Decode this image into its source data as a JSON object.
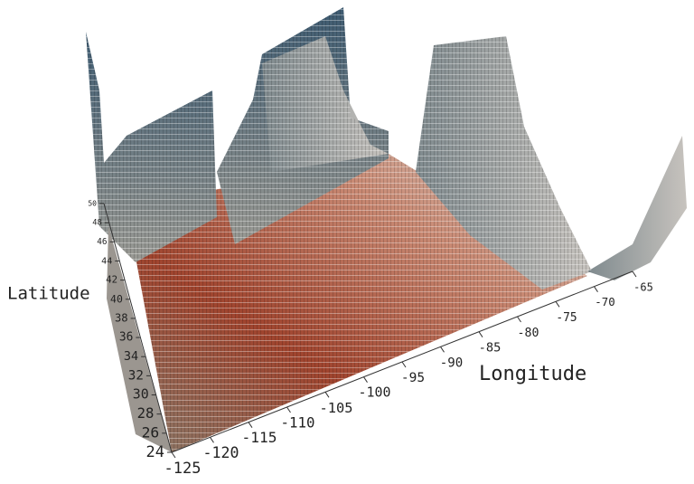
{
  "chart_data": {
    "type": "bar3d",
    "xlabel": "Longitude",
    "ylabel": "Latitude",
    "xlim": [
      -125,
      -65
    ],
    "xticks": [
      -125,
      -120,
      -115,
      -110,
      -105,
      -100,
      -95,
      -90,
      -85,
      -80,
      -75,
      -70,
      -65
    ],
    "ylim": [
      24,
      50
    ],
    "yticks": [
      24,
      26,
      28,
      30,
      32,
      34,
      36,
      38,
      40,
      42,
      44,
      46,
      48,
      50
    ]
  }
}
